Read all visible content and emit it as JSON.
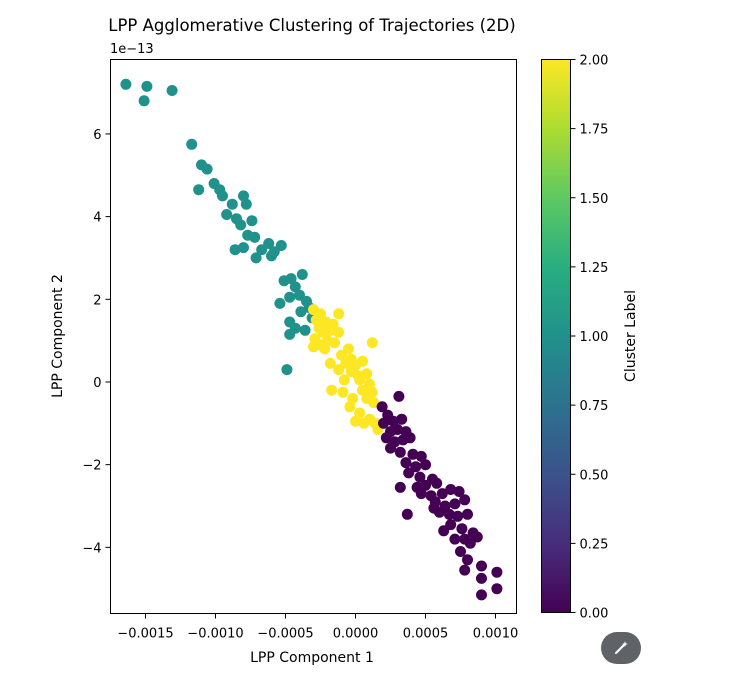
{
  "chart_data": {
    "type": "scatter",
    "title": "LPP Agglomerative Clustering of Trajectories (2D)",
    "xlabel": "LPP Component 1",
    "ylabel": "LPP Component 2",
    "y_offset_label": "1e−13",
    "xlim": [
      -0.00175,
      0.00115
    ],
    "ylim": [
      -5.6,
      7.8
    ],
    "x_ticks": [
      -0.0015,
      -0.001,
      -0.0005,
      0.0,
      0.0005,
      0.001
    ],
    "x_tick_labels": [
      "−0.0015",
      "−0.0010",
      "−0.0005",
      "0.0000",
      "0.0005",
      "0.0010"
    ],
    "y_ticks": [
      -4,
      -2,
      0,
      2,
      4,
      6
    ],
    "y_tick_labels": [
      "−4",
      "−2",
      "0",
      "2",
      "4",
      "6"
    ],
    "colorbar": {
      "label": "Cluster Label",
      "range": [
        0.0,
        2.0
      ],
      "ticks": [
        0.0,
        0.25,
        0.5,
        0.75,
        1.0,
        1.25,
        1.5,
        1.75,
        2.0
      ],
      "tick_labels": [
        "0.00",
        "0.25",
        "0.50",
        "0.75",
        "1.00",
        "1.25",
        "1.50",
        "1.75",
        "2.00"
      ],
      "colormap": "viridis"
    },
    "cluster_colors": {
      "0": "#440154",
      "1": "#21918c",
      "2": "#fde725"
    },
    "grid": false,
    "series": [
      {
        "cluster": 1,
        "points": [
          [
            -0.00164,
            7.2
          ],
          [
            -0.00149,
            7.15
          ],
          [
            -0.00151,
            6.8
          ],
          [
            -0.00131,
            7.05
          ],
          [
            -0.00117,
            5.75
          ],
          [
            -0.0011,
            5.25
          ],
          [
            -0.00106,
            5.15
          ],
          [
            -0.00101,
            4.8
          ],
          [
            -0.00097,
            4.65
          ],
          [
            -0.00095,
            4.5
          ],
          [
            -0.00112,
            4.65
          ],
          [
            -0.0008,
            4.5
          ],
          [
            -0.00088,
            4.3
          ],
          [
            -0.00092,
            4.05
          ],
          [
            -0.00085,
            3.95
          ],
          [
            -0.00078,
            4.3
          ],
          [
            -0.00074,
            3.9
          ],
          [
            -0.00082,
            3.8
          ],
          [
            -0.00077,
            3.55
          ],
          [
            -0.00072,
            3.5
          ],
          [
            -0.00086,
            3.2
          ],
          [
            -0.0008,
            3.25
          ],
          [
            -0.00067,
            3.2
          ],
          [
            -0.00071,
            3.0
          ],
          [
            -0.00062,
            3.35
          ],
          [
            -0.00058,
            3.15
          ],
          [
            -0.00053,
            3.3
          ],
          [
            -0.0006,
            3.05
          ],
          [
            -0.00051,
            2.45
          ],
          [
            -0.00046,
            2.5
          ],
          [
            -0.00038,
            2.6
          ],
          [
            -0.00043,
            2.3
          ],
          [
            -0.0004,
            2.1
          ],
          [
            -0.00047,
            2.05
          ],
          [
            -0.00035,
            1.95
          ],
          [
            -0.00054,
            1.9
          ],
          [
            -0.00033,
            1.8
          ],
          [
            -0.00039,
            1.7
          ],
          [
            -0.00031,
            1.55
          ],
          [
            -0.00047,
            1.45
          ],
          [
            -0.00043,
            1.3
          ],
          [
            -0.00036,
            1.25
          ],
          [
            -0.00047,
            1.15
          ],
          [
            -0.00049,
            0.3
          ]
        ]
      },
      {
        "cluster": 2,
        "points": [
          [
            -0.0003,
            1.75
          ],
          [
            -0.00025,
            1.65
          ],
          [
            -0.00012,
            1.65
          ],
          [
            -0.00028,
            1.5
          ],
          [
            -0.00021,
            1.45
          ],
          [
            -0.00016,
            1.4
          ],
          [
            -0.00026,
            1.3
          ],
          [
            -0.00018,
            1.25
          ],
          [
            -0.00023,
            1.2
          ],
          [
            -0.00012,
            1.2
          ],
          [
            -0.00029,
            1.05
          ],
          [
            -0.0002,
            1.0
          ],
          [
            -0.00025,
            0.9
          ],
          [
            -0.00015,
            0.95
          ],
          [
            -0.00022,
            0.8
          ],
          [
            -0.0003,
            0.85
          ],
          [
            -5e-05,
            0.8
          ],
          [
            0.00012,
            0.95
          ],
          [
            -0.0001,
            0.65
          ],
          [
            -3e-05,
            0.55
          ],
          [
            -0.00018,
            0.45
          ],
          [
            -7e-05,
            0.45
          ],
          [
            0.0,
            0.4
          ],
          [
            5e-05,
            0.5
          ],
          [
            -0.00012,
            0.3
          ],
          [
            -3e-05,
            0.25
          ],
          [
            2e-05,
            0.15
          ],
          [
            8e-05,
            0.2
          ],
          [
            -8e-05,
            0.05
          ],
          [
            3e-05,
            0.05
          ],
          [
            0.0001,
            -0.05
          ],
          [
            -0.00017,
            -0.2
          ],
          [
            -9e-05,
            -0.25
          ],
          [
            5e-05,
            -0.2
          ],
          [
            0.00012,
            -0.25
          ],
          [
            -2e-05,
            -0.4
          ],
          [
            8e-05,
            -0.4
          ],
          [
            0.00013,
            -0.5
          ],
          [
            -4e-05,
            -0.6
          ],
          [
            3e-05,
            -0.75
          ],
          [
            0.0001,
            -0.9
          ],
          [
            0.0,
            -0.95
          ],
          [
            0.00014,
            -1.0
          ],
          [
            6e-05,
            -1.0
          ],
          [
            0.00016,
            -1.15
          ]
        ]
      },
      {
        "cluster": 0,
        "points": [
          [
            0.00031,
            -0.35
          ],
          [
            0.00019,
            -0.6
          ],
          [
            0.00023,
            -0.8
          ],
          [
            0.00027,
            -0.95
          ],
          [
            0.0002,
            -1.0
          ],
          [
            0.00033,
            -0.9
          ],
          [
            0.00025,
            -1.2
          ],
          [
            0.0003,
            -1.15
          ],
          [
            0.00036,
            -1.2
          ],
          [
            0.00022,
            -1.35
          ],
          [
            0.00028,
            -1.45
          ],
          [
            0.00034,
            -1.4
          ],
          [
            0.00039,
            -1.35
          ],
          [
            0.00025,
            -1.6
          ],
          [
            0.00032,
            -1.7
          ],
          [
            0.00041,
            -1.75
          ],
          [
            0.00047,
            -1.8
          ],
          [
            0.00036,
            -1.95
          ],
          [
            0.00043,
            -2.05
          ],
          [
            0.0005,
            -2.0
          ],
          [
            0.00038,
            -2.2
          ],
          [
            0.00046,
            -2.3
          ],
          [
            0.00055,
            -2.35
          ],
          [
            0.00032,
            -2.55
          ],
          [
            0.00044,
            -2.55
          ],
          [
            0.0005,
            -2.5
          ],
          [
            0.00058,
            -2.45
          ],
          [
            0.00047,
            -2.7
          ],
          [
            0.00054,
            -2.75
          ],
          [
            0.00062,
            -2.7
          ],
          [
            0.00068,
            -2.6
          ],
          [
            0.00074,
            -2.65
          ],
          [
            0.00057,
            -2.9
          ],
          [
            0.00064,
            -3.0
          ],
          [
            0.00071,
            -2.95
          ],
          [
            0.00078,
            -2.85
          ],
          [
            0.0006,
            -3.15
          ],
          [
            0.00067,
            -3.2
          ],
          [
            0.00073,
            -3.25
          ],
          [
            0.0008,
            -3.2
          ],
          [
            0.00037,
            -3.2
          ],
          [
            0.00056,
            -3.05
          ],
          [
            0.00068,
            -3.45
          ],
          [
            0.00076,
            -3.55
          ],
          [
            0.00084,
            -3.65
          ],
          [
            0.00063,
            -3.6
          ],
          [
            0.00071,
            -3.8
          ],
          [
            0.00078,
            -3.8
          ],
          [
            0.00087,
            -3.75
          ],
          [
            0.00082,
            -3.9
          ],
          [
            0.00075,
            -4.1
          ],
          [
            0.0008,
            -4.3
          ],
          [
            0.0009,
            -4.45
          ],
          [
            0.00078,
            -4.55
          ],
          [
            0.0009,
            -4.75
          ],
          [
            0.00101,
            -4.6
          ],
          [
            0.0009,
            -5.15
          ],
          [
            0.00101,
            -5.0
          ]
        ]
      }
    ]
  }
}
